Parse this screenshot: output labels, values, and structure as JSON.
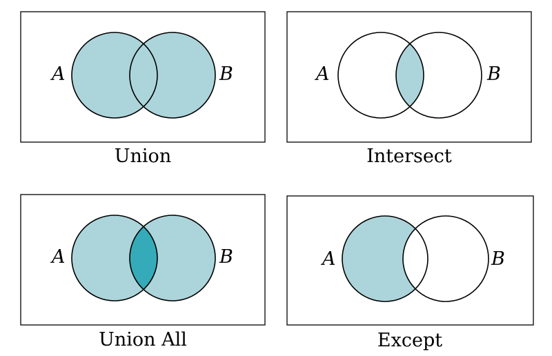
{
  "colors": {
    "fill_light": "#acd5db",
    "fill_overlap": "#35aab8",
    "empty": "#ffffff",
    "stroke": "#000000"
  },
  "panels": [
    {
      "caption": "Union",
      "set_a_label": "A",
      "set_b_label": "B",
      "shaded": "union"
    },
    {
      "caption": "Intersect",
      "set_a_label": "A",
      "set_b_label": "B",
      "shaded": "intersection"
    },
    {
      "caption": "Union All",
      "set_a_label": "A",
      "set_b_label": "B",
      "shaded": "union-all"
    },
    {
      "caption": "Except",
      "set_a_label": "A",
      "set_b_label": "B",
      "shaded": "a-minus-b"
    }
  ]
}
